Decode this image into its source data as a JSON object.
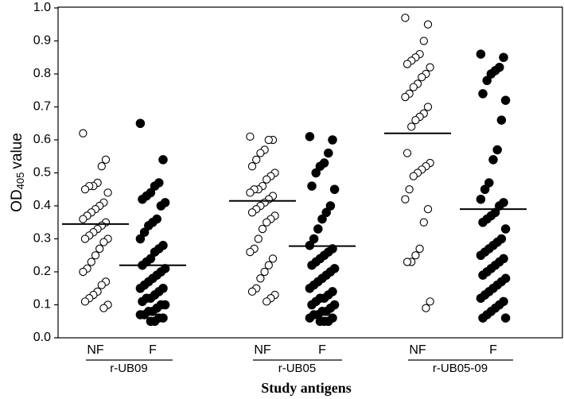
{
  "chart_data": {
    "type": "dot",
    "y_label": "OD",
    "y_label_sub": "405",
    "y_label_suffix": "value",
    "x_label": "Study antigens",
    "ylim": [
      0,
      1
    ],
    "yticks": [
      {
        "value": 0,
        "label": "0.0"
      },
      0.1,
      0.2,
      0.3,
      0.4,
      0.5,
      0.6,
      0.7,
      0.8,
      0.9,
      {
        "value": 1,
        "label": "1.0"
      }
    ],
    "groups": [
      {
        "name": "r-UB09",
        "series": [
          {
            "name": "NF",
            "filled": false,
            "mean": 0.345,
            "values": [
              0.62,
              0.54,
              0.52,
              0.47,
              0.46,
              0.46,
              0.45,
              0.44,
              0.41,
              0.4,
              0.39,
              0.38,
              0.37,
              0.36,
              0.35,
              0.34,
              0.33,
              0.32,
              0.31,
              0.3,
              0.3,
              0.29,
              0.27,
              0.25,
              0.23,
              0.21,
              0.2,
              0.17,
              0.16,
              0.14,
              0.13,
              0.12,
              0.11,
              0.1,
              0.09
            ]
          },
          {
            "name": "F",
            "filled": true,
            "mean": 0.22,
            "values": [
              0.65,
              0.54,
              0.47,
              0.46,
              0.44,
              0.43,
              0.42,
              0.41,
              0.4,
              0.36,
              0.35,
              0.34,
              0.32,
              0.3,
              0.28,
              0.27,
              0.26,
              0.24,
              0.23,
              0.22,
              0.21,
              0.2,
              0.19,
              0.18,
              0.17,
              0.16,
              0.15,
              0.15,
              0.14,
              0.13,
              0.12,
              0.12,
              0.11,
              0.1,
              0.1,
              0.09,
              0.08,
              0.08,
              0.07,
              0.07,
              0.06,
              0.06,
              0.05,
              0.05
            ]
          }
        ]
      },
      {
        "name": "r-UB05",
        "series": [
          {
            "name": "NF",
            "filled": false,
            "mean": 0.415,
            "values": [
              0.61,
              0.6,
              0.6,
              0.57,
              0.56,
              0.54,
              0.52,
              0.5,
              0.49,
              0.48,
              0.46,
              0.45,
              0.45,
              0.44,
              0.43,
              0.42,
              0.41,
              0.4,
              0.39,
              0.38,
              0.37,
              0.36,
              0.35,
              0.33,
              0.3,
              0.27,
              0.26,
              0.24,
              0.22,
              0.2,
              0.18,
              0.15,
              0.14,
              0.13,
              0.12,
              0.11
            ]
          },
          {
            "name": "F",
            "filled": true,
            "mean": 0.278,
            "values": [
              0.61,
              0.6,
              0.56,
              0.53,
              0.52,
              0.5,
              0.46,
              0.45,
              0.4,
              0.38,
              0.36,
              0.33,
              0.3,
              0.28,
              0.27,
              0.26,
              0.25,
              0.24,
              0.23,
              0.22,
              0.21,
              0.2,
              0.19,
              0.18,
              0.17,
              0.16,
              0.15,
              0.14,
              0.13,
              0.12,
              0.12,
              0.11,
              0.1,
              0.1,
              0.09,
              0.08,
              0.08,
              0.07,
              0.07,
              0.06,
              0.06,
              0.05,
              0.05,
              0.05
            ]
          }
        ]
      },
      {
        "name": "r-UB05-09",
        "series": [
          {
            "name": "NF",
            "filled": false,
            "mean": 0.62,
            "values": [
              0.97,
              0.95,
              0.9,
              0.86,
              0.85,
              0.84,
              0.83,
              0.82,
              0.8,
              0.79,
              0.77,
              0.76,
              0.74,
              0.73,
              0.7,
              0.68,
              0.67,
              0.66,
              0.64,
              0.56,
              0.53,
              0.52,
              0.51,
              0.5,
              0.49,
              0.45,
              0.42,
              0.39,
              0.35,
              0.27,
              0.25,
              0.23,
              0.23,
              0.11,
              0.09
            ]
          },
          {
            "name": "F",
            "filled": true,
            "mean": 0.39,
            "values": [
              0.86,
              0.85,
              0.82,
              0.81,
              0.8,
              0.78,
              0.74,
              0.72,
              0.66,
              0.57,
              0.54,
              0.47,
              0.45,
              0.42,
              0.41,
              0.4,
              0.38,
              0.37,
              0.36,
              0.35,
              0.33,
              0.3,
              0.29,
              0.28,
              0.27,
              0.26,
              0.25,
              0.24,
              0.23,
              0.22,
              0.21,
              0.2,
              0.19,
              0.18,
              0.17,
              0.16,
              0.15,
              0.14,
              0.13,
              0.12,
              0.11,
              0.1,
              0.09,
              0.08,
              0.07,
              0.06,
              0.06
            ]
          }
        ]
      }
    ]
  }
}
